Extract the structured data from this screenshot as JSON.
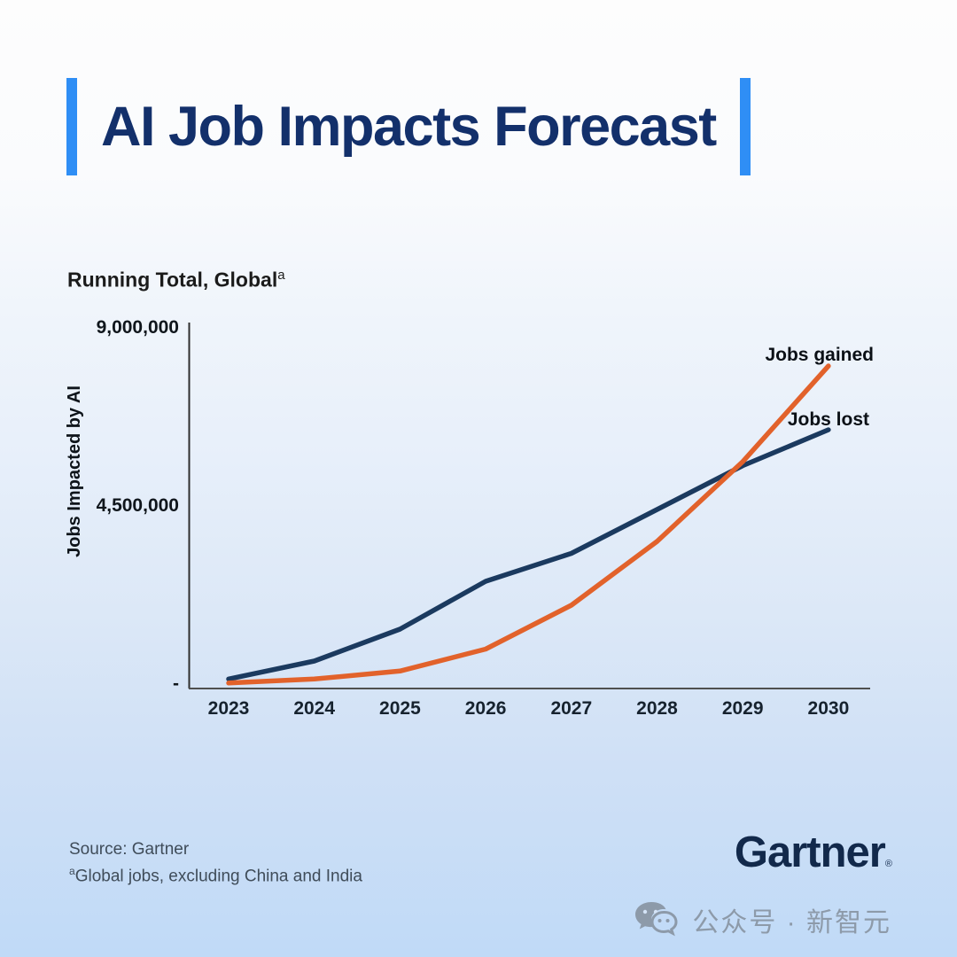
{
  "header": {
    "title": "AI Job Impacts Forecast"
  },
  "chart": {
    "subtitle": "Running Total, Global",
    "subtitle_superscript": "a",
    "y_axis_title": "Jobs Impacted by AI",
    "y_ticks": [
      "9,000,000",
      "4,500,000",
      "-"
    ],
    "series_labels": {
      "gained": "Jobs gained",
      "lost": "Jobs lost"
    }
  },
  "chart_data": {
    "type": "line",
    "title": "AI Job Impacts Forecast",
    "subtitle": "Running Total, Global (a)",
    "ylabel": "Jobs Impacted by AI",
    "x": [
      2023,
      2024,
      2025,
      2026,
      2027,
      2028,
      2029,
      2030
    ],
    "series": [
      {
        "name": "Jobs lost",
        "color": "#1b3a5f",
        "values": [
          150000,
          600000,
          1400000,
          2600000,
          3300000,
          4400000,
          5500000,
          6400000
        ]
      },
      {
        "name": "Jobs gained",
        "color": "#e2622b",
        "values": [
          50000,
          150000,
          350000,
          900000,
          2000000,
          3600000,
          5600000,
          8000000
        ]
      }
    ],
    "ylim": [
      0,
      9000000
    ],
    "y_tick_values": [
      0,
      4500000,
      9000000
    ],
    "grid": false,
    "legend_position": "line-end-labels"
  },
  "footer": {
    "source": "Source: Gartner",
    "note_superscript": "a",
    "note": "Global jobs, excluding China and India",
    "logo_text": "Gartner",
    "registered_mark": "®"
  },
  "watermark": {
    "text": "公众号 · 新智元"
  },
  "colors": {
    "accent_blue": "#2f8ef5",
    "title_navy": "#13306b",
    "jobs_gained_orange": "#e2622b",
    "jobs_lost_navy": "#1b3a5f"
  }
}
